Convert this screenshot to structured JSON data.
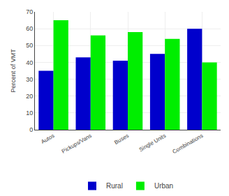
{
  "chart_data": {
    "type": "bar",
    "categories": [
      "Autos",
      "Pickups/Vans",
      "Buses",
      "Single Units",
      "Combinations"
    ],
    "series": [
      {
        "name": "Rural",
        "color": "#0000CC",
        "values": [
          35,
          43,
          41,
          45,
          60
        ]
      },
      {
        "name": "Urban",
        "color": "#00EE00",
        "values": [
          65,
          56,
          58,
          54,
          40
        ]
      }
    ],
    "ylabel": "Percent of VMT",
    "ylim": [
      0,
      70
    ],
    "yticks": [
      0,
      10,
      20,
      30,
      40,
      50,
      60,
      70
    ],
    "grid": true,
    "legend": "bottom"
  }
}
